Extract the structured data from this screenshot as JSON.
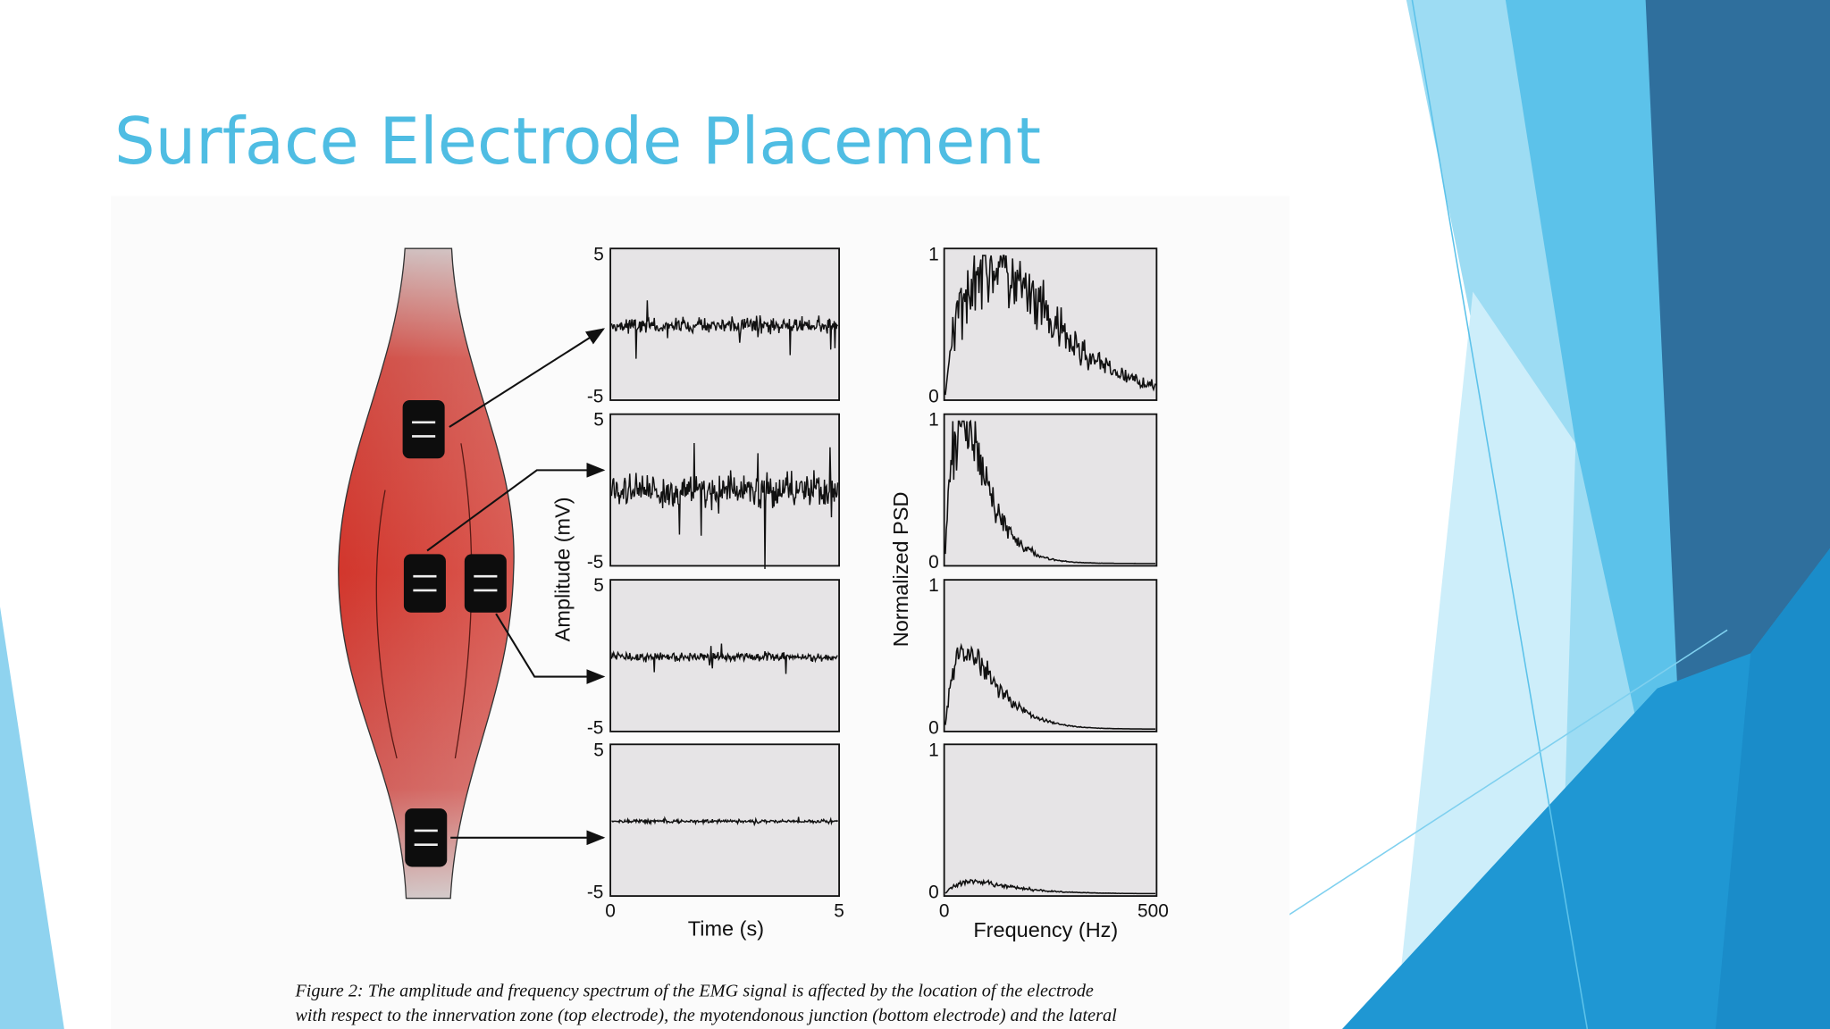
{
  "title": "Surface Electrode Placement",
  "figure": {
    "amplitude_axis": {
      "label": "Amplitude (mV)",
      "ticks": [
        "5",
        "-5"
      ]
    },
    "time_axis": {
      "label": "Time (s)",
      "ticks": [
        "0",
        "5"
      ]
    },
    "psd_axis": {
      "label": "Normalized PSD",
      "ticks": [
        "1",
        "0"
      ]
    },
    "frequency_axis": {
      "label": "Frequency (Hz)",
      "ticks": [
        "0",
        "500"
      ]
    }
  },
  "caption": [
    "Figure 2:  The amplitude and frequency spectrum of the EMG signal is affected by the location of the electrode",
    "with respect to the innervation zone (top electrode), the myotendonous junction (bottom electrode) and the lateral"
  ]
}
